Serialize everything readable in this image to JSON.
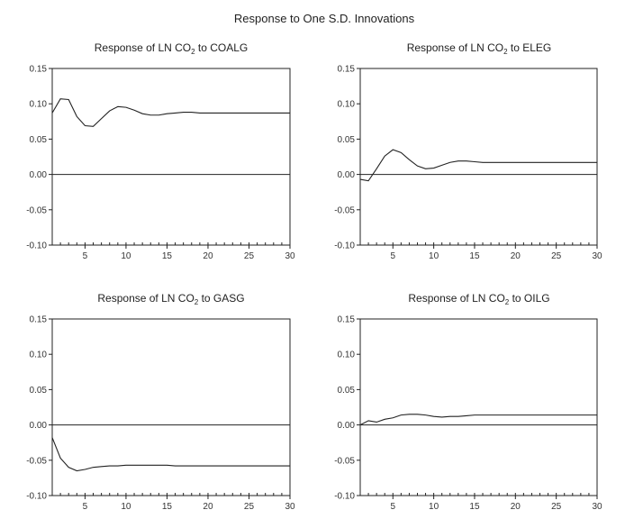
{
  "title": "Response to One S.D. Innovations",
  "chart_data": [
    {
      "type": "line",
      "title": "Response of LN CO",
      "title_sub": "2",
      "title_suffix": " to COALG",
      "xlim": [
        1,
        30
      ],
      "ylim": [
        -0.1,
        0.15
      ],
      "x_ticks": [
        "5",
        "10",
        "15",
        "20",
        "25",
        "30"
      ],
      "y_ticks": [
        "0.15",
        "0.10",
        "0.05",
        "0.00",
        "-0.05",
        "-0.10"
      ],
      "x": [
        1,
        2,
        3,
        4,
        5,
        6,
        7,
        8,
        9,
        10,
        11,
        12,
        13,
        14,
        15,
        16,
        17,
        18,
        19,
        20,
        21,
        22,
        23,
        24,
        25,
        26,
        27,
        28,
        29,
        30
      ],
      "values": [
        0.087,
        0.107,
        0.106,
        0.082,
        0.069,
        0.068,
        0.079,
        0.09,
        0.096,
        0.095,
        0.091,
        0.086,
        0.084,
        0.084,
        0.086,
        0.087,
        0.088,
        0.088,
        0.087,
        0.087,
        0.087,
        0.087,
        0.087,
        0.087,
        0.087,
        0.087,
        0.087,
        0.087,
        0.087,
        0.087
      ]
    },
    {
      "type": "line",
      "title": "Response of LN CO",
      "title_sub": "2",
      "title_suffix": " to ELEG",
      "xlim": [
        1,
        30
      ],
      "ylim": [
        -0.1,
        0.15
      ],
      "x_ticks": [
        "5",
        "10",
        "15",
        "20",
        "25",
        "30"
      ],
      "y_ticks": [
        "0.15",
        "0.10",
        "0.05",
        "0.00",
        "-0.05",
        "-0.10"
      ],
      "x": [
        1,
        2,
        3,
        4,
        5,
        6,
        7,
        8,
        9,
        10,
        11,
        12,
        13,
        14,
        15,
        16,
        17,
        18,
        19,
        20,
        21,
        22,
        23,
        24,
        25,
        26,
        27,
        28,
        29,
        30
      ],
      "values": [
        -0.007,
        -0.009,
        0.008,
        0.026,
        0.035,
        0.031,
        0.021,
        0.012,
        0.008,
        0.009,
        0.013,
        0.017,
        0.019,
        0.019,
        0.018,
        0.017,
        0.017,
        0.017,
        0.017,
        0.017,
        0.017,
        0.017,
        0.017,
        0.017,
        0.017,
        0.017,
        0.017,
        0.017,
        0.017,
        0.017
      ]
    },
    {
      "type": "line",
      "title": "Response of LN CO",
      "title_sub": "2",
      "title_suffix": " to GASG",
      "xlim": [
        1,
        30
      ],
      "ylim": [
        -0.1,
        0.15
      ],
      "x_ticks": [
        "5",
        "10",
        "15",
        "20",
        "25",
        "30"
      ],
      "y_ticks": [
        "0.15",
        "0.10",
        "0.05",
        "0.00",
        "-0.05",
        "-0.10"
      ],
      "x": [
        1,
        2,
        3,
        4,
        5,
        6,
        7,
        8,
        9,
        10,
        11,
        12,
        13,
        14,
        15,
        16,
        17,
        18,
        19,
        20,
        21,
        22,
        23,
        24,
        25,
        26,
        27,
        28,
        29,
        30
      ],
      "values": [
        -0.018,
        -0.047,
        -0.06,
        -0.065,
        -0.063,
        -0.06,
        -0.059,
        -0.058,
        -0.058,
        -0.057,
        -0.057,
        -0.057,
        -0.057,
        -0.057,
        -0.057,
        -0.058,
        -0.058,
        -0.058,
        -0.058,
        -0.058,
        -0.058,
        -0.058,
        -0.058,
        -0.058,
        -0.058,
        -0.058,
        -0.058,
        -0.058,
        -0.058,
        -0.058
      ]
    },
    {
      "type": "line",
      "title": "Response of LN CO",
      "title_sub": "2",
      "title_suffix": " to OILG",
      "xlim": [
        1,
        30
      ],
      "ylim": [
        -0.1,
        0.15
      ],
      "x_ticks": [
        "5",
        "10",
        "15",
        "20",
        "25",
        "30"
      ],
      "y_ticks": [
        "0.15",
        "0.10",
        "0.05",
        "0.00",
        "-0.05",
        "-0.10"
      ],
      "x": [
        1,
        2,
        3,
        4,
        5,
        6,
        7,
        8,
        9,
        10,
        11,
        12,
        13,
        14,
        15,
        16,
        17,
        18,
        19,
        20,
        21,
        22,
        23,
        24,
        25,
        26,
        27,
        28,
        29,
        30
      ],
      "values": [
        0.0,
        0.006,
        0.004,
        0.008,
        0.01,
        0.014,
        0.015,
        0.015,
        0.014,
        0.012,
        0.011,
        0.012,
        0.012,
        0.013,
        0.014,
        0.014,
        0.014,
        0.014,
        0.014,
        0.014,
        0.014,
        0.014,
        0.014,
        0.014,
        0.014,
        0.014,
        0.014,
        0.014,
        0.014,
        0.014
      ]
    }
  ]
}
